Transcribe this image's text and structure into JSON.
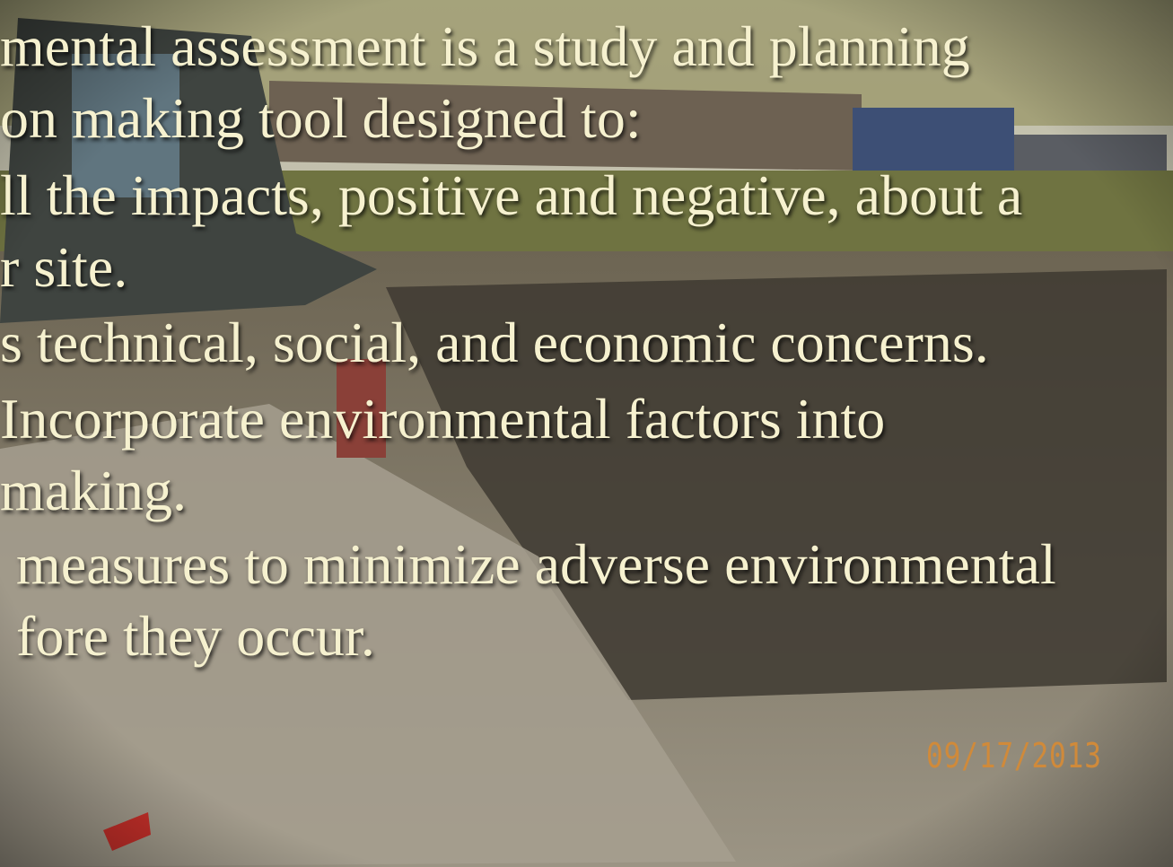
{
  "slide": {
    "lines": [
      "mental assessment is a study and planning",
      "on making tool designed to:",
      "ll the impacts, positive and negative, about a",
      "r site.",
      "s technical, social, and economic concerns.",
      "Incorporate environmental factors into",
      "making.",
      "measures to minimize adverse environmental",
      "fore they occur."
    ],
    "photo_date": "09/17/2013"
  }
}
